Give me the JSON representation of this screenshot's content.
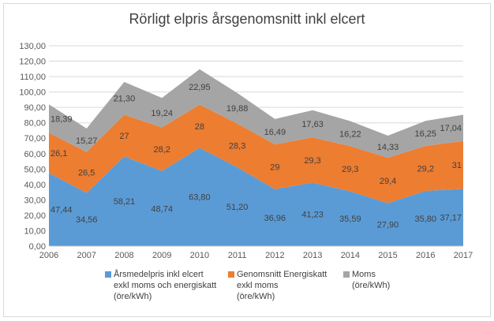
{
  "chart_data": {
    "type": "area",
    "stacked": true,
    "title": "Rörligt elpris årsgenomsnitt inkl elcert",
    "x": [
      "2006",
      "2007",
      "2008",
      "2009",
      "2010",
      "2011",
      "2012",
      "2013",
      "2014",
      "2015",
      "2016",
      "2017"
    ],
    "ylim": [
      0,
      130
    ],
    "ytick_step": 10,
    "ytick_labels": [
      "0,00",
      "10,00",
      "20,00",
      "30,00",
      "40,00",
      "50,00",
      "60,00",
      "70,00",
      "80,00",
      "90,00",
      "100,00",
      "110,00",
      "120,00",
      "130,00"
    ],
    "grid": true,
    "legend_position": "bottom",
    "series": [
      {
        "name": "Årsmedelpris inkl elcert exkl moms och energiskatt (öre/kWh)",
        "name_lines": [
          "Årsmedelpris inkl elcert",
          "exkl moms och energiskatt",
          "(öre/kWh)"
        ],
        "color": "#5b9bd5",
        "values": [
          47.44,
          34.56,
          58.21,
          48.74,
          63.8,
          51.2,
          36.96,
          41.23,
          35.59,
          27.9,
          35.8,
          37.17
        ],
        "labels": [
          "47,44",
          "34,56",
          "58,21",
          "48,74",
          "63,80",
          "51,20",
          "36,96",
          "41,23",
          "35,59",
          "27,90",
          "35,80",
          "37,17"
        ]
      },
      {
        "name": "Genomsnitt Energiskatt exkl moms (öre/kWh)",
        "name_lines": [
          "Genomsnitt Energiskatt",
          "exkl moms",
          "(öre/kWh)"
        ],
        "color": "#ed7d31",
        "values": [
          26.1,
          26.5,
          27,
          28.2,
          28,
          28.3,
          29,
          29.3,
          29.3,
          29.4,
          29.2,
          31
        ],
        "labels": [
          "26,1",
          "26,5",
          "27",
          "28,2",
          "28",
          "28,3",
          "29",
          "29,3",
          "29,3",
          "29,4",
          "29,2",
          "31"
        ]
      },
      {
        "name": "Moms (öre/kWh)",
        "name_lines": [
          "Moms",
          "(öre/kWh)"
        ],
        "color": "#a5a5a5",
        "values": [
          18.39,
          15.27,
          21.3,
          19.24,
          22.95,
          19.88,
          16.49,
          17.63,
          16.22,
          14.33,
          16.25,
          17.04
        ],
        "labels": [
          "18,39",
          "15,27",
          "21,30",
          "19,24",
          "22,95",
          "19,88",
          "16,49",
          "17,63",
          "16,22",
          "14,33",
          "16,25",
          "17,04"
        ]
      }
    ]
  }
}
